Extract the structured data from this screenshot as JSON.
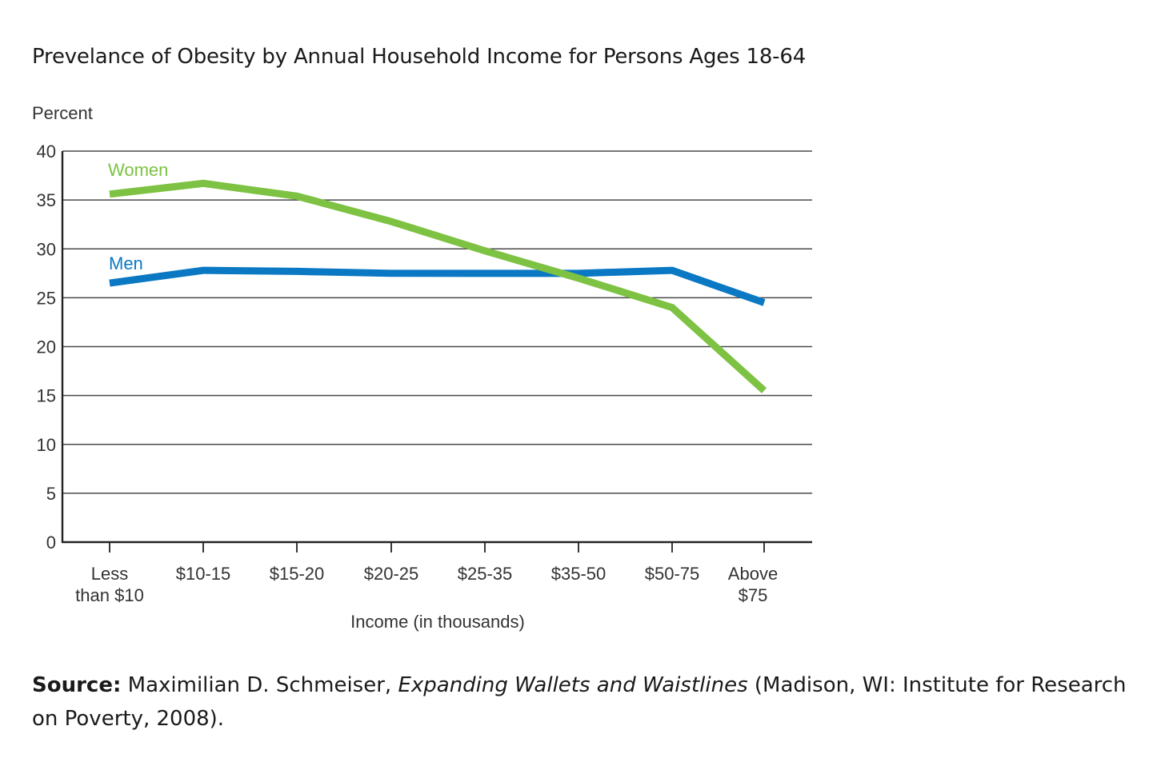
{
  "page": {
    "title": "Prevelance of Obesity by Annual Household Income for Persons Ages 18-64"
  },
  "source": {
    "label": "Source:",
    "author": " Maximilian D. Schmeiser, ",
    "work_title": "Expanding Wallets and Waistlines",
    "details": " (Madison, WI: Institute for Research on Poverty, 2008)."
  },
  "chart_data": {
    "type": "line",
    "title": "",
    "ylabel": "Percent",
    "xlabel": "Income (in thousands)",
    "ylim": [
      0,
      40
    ],
    "yticks": [
      0,
      5,
      10,
      15,
      20,
      25,
      30,
      35,
      40
    ],
    "grid": true,
    "categories": [
      [
        "Less",
        "than $10"
      ],
      [
        "$10-15"
      ],
      [
        "$15-20"
      ],
      [
        "$20-25"
      ],
      [
        "$25-35"
      ],
      [
        "$35-50"
      ],
      [
        "$50-75"
      ],
      [
        "Above",
        "$75"
      ]
    ],
    "series": [
      {
        "name": "Women",
        "color": "#7dc242",
        "values": [
          35.6,
          36.7,
          35.4,
          32.8,
          29.8,
          27.0,
          24.0,
          15.5
        ]
      },
      {
        "name": "Men",
        "color": "#0a78c2",
        "values": [
          26.5,
          27.8,
          27.7,
          27.5,
          27.5,
          27.5,
          27.8,
          24.5
        ]
      }
    ]
  }
}
